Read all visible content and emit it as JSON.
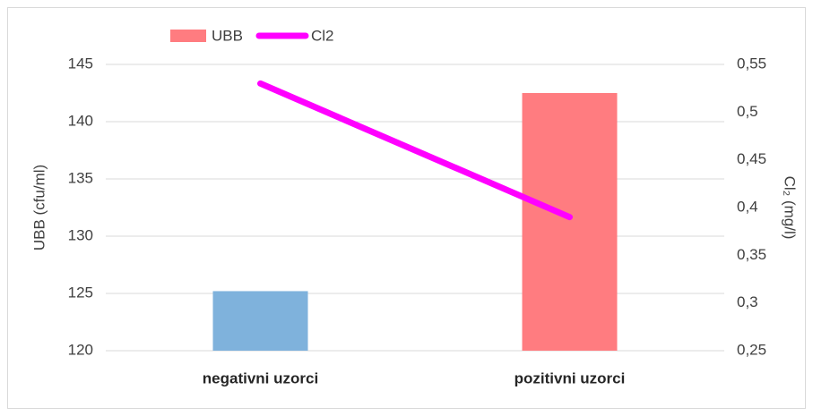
{
  "chart_data": {
    "type": "bar_line",
    "categories": [
      "negativni uzorci",
      "pozitivni uzorci"
    ],
    "series": [
      {
        "name": "UBB",
        "type": "bar",
        "color": "#ff7c80",
        "colors": [
          "#7fb2dc",
          "#ff7c80"
        ],
        "values": [
          125.2,
          142.5
        ]
      },
      {
        "name": "Cl2",
        "type": "line",
        "axis": "y2",
        "color": "#ff00ff",
        "values": [
          0.53,
          0.39
        ]
      }
    ],
    "ylabel": "UBB (cfu/ml)",
    "y2label": "Cl₂ (mg/l)",
    "ylim": [
      120,
      145
    ],
    "yticks": [
      120,
      125,
      130,
      135,
      140,
      145
    ],
    "y2lim": [
      0.25,
      0.55
    ],
    "y2ticks": [
      {
        "value": 0.25,
        "label": "0,25"
      },
      {
        "value": 0.3,
        "label": "0,3"
      },
      {
        "value": 0.35,
        "label": "0,35"
      },
      {
        "value": 0.4,
        "label": "0,4"
      },
      {
        "value": 0.45,
        "label": "0,45"
      },
      {
        "value": 0.5,
        "label": "0,5"
      },
      {
        "value": 0.55,
        "label": "0,55"
      }
    ],
    "grid": true,
    "legend": "top"
  }
}
